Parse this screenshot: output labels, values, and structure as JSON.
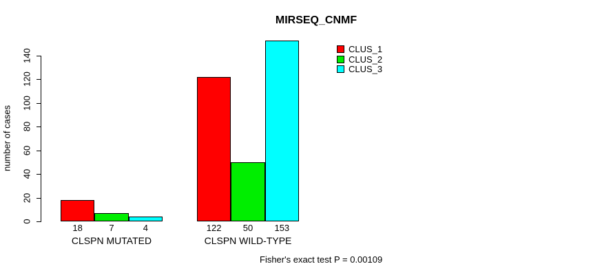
{
  "chart_data": {
    "type": "bar",
    "title": "MIRSEQ_CNMF",
    "ylabel": "number of cases",
    "xlabel": "",
    "categories": [
      "CLSPN MUTATED",
      "CLSPN WILD-TYPE"
    ],
    "series": [
      {
        "name": "CLUS_1",
        "color": "#FF0000",
        "values": [
          18,
          122
        ]
      },
      {
        "name": "CLUS_2",
        "color": "#00EE00",
        "values": [
          7,
          50
        ]
      },
      {
        "name": "CLUS_3",
        "color": "#00FFFF",
        "values": [
          4,
          153
        ]
      }
    ],
    "yticks": [
      0,
      20,
      40,
      60,
      80,
      100,
      120,
      140
    ],
    "ylim": [
      0,
      140
    ],
    "bar_value_labels": true,
    "grid": false,
    "legend_position": "top-right",
    "annotation": "Fisher's exact test P = 0.00109"
  }
}
